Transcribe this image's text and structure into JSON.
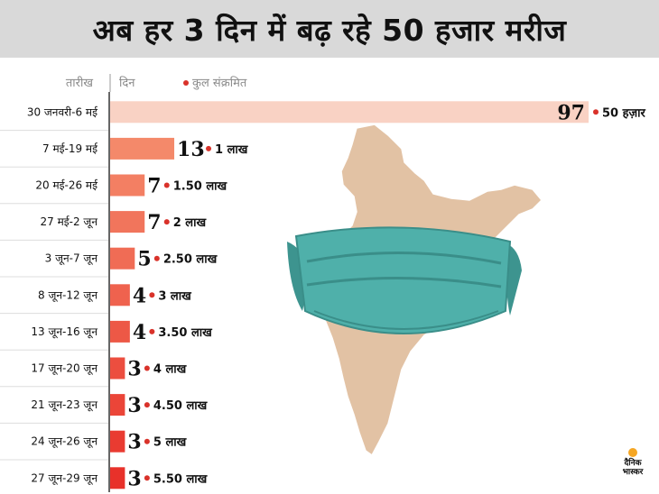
{
  "title": "अब हर 3 दिन में बढ़ रहे 50 हजार मरीज",
  "header": {
    "date_col": "तारीख",
    "days_col": "दिन",
    "cumulative_col": "कुल संक्रमित"
  },
  "colors": {
    "first_bar": "#f9d2c4",
    "bar_light": "#f4896a",
    "bar_dark": "#e8312a",
    "highlight_text": "#e8312a",
    "mask": "#4aa9a3",
    "map": "#e2c2a4"
  },
  "logo": {
    "line1": "दैनिक",
    "line2": "भास्कर"
  },
  "chart_data": {
    "type": "bar",
    "orientation": "horizontal",
    "categories": [
      "30 जनवरी-6 मई",
      "7 मई-19 मई",
      "20 मई-26 मई",
      "27 मई-2 जून",
      "3 जून-7 जून",
      "8 जून-12 जून",
      "13 जून-16 जून",
      "17 जून-20 जून",
      "21 जून-23 जून",
      "24 जून-26 जून",
      "27 जून-29 जून"
    ],
    "values": [
      97,
      13,
      7,
      7,
      5,
      4,
      4,
      3,
      3,
      3,
      3
    ],
    "cumulative_labels": [
      "50 हज़ार",
      "1 लाख",
      "1.50 लाख",
      "2 लाख",
      "2.50 लाख",
      "3 लाख",
      "3.50 लाख",
      "4 लाख",
      "4.50 लाख",
      "5 लाख",
      "5.50 लाख"
    ],
    "title": "अब हर 3 दिन में बढ़ रहे 50 हजार मरीज",
    "xlabel": "दिन",
    "ylabel": "तारीख",
    "legend": "कुल संक्रमित",
    "xlim": [
      0,
      97
    ],
    "highlight_last": true
  }
}
